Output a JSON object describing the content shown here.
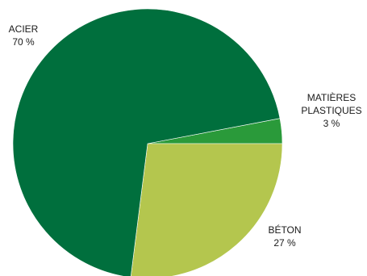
{
  "chart_data": {
    "type": "pie",
    "title": "",
    "unit": "%",
    "slices": [
      {
        "label_lines": [
          "ACIER"
        ],
        "value": 70,
        "value_text": "70 %",
        "color": "#006f3d"
      },
      {
        "label_lines": [
          "MATIÈRES",
          "PLASTIQUES"
        ],
        "value": 3,
        "value_text": "3 %",
        "color": "#2a9a3a"
      },
      {
        "label_lines": [
          "BÉTON"
        ],
        "value": 27,
        "value_text": "27 %",
        "color": "#b4c64e"
      }
    ]
  }
}
